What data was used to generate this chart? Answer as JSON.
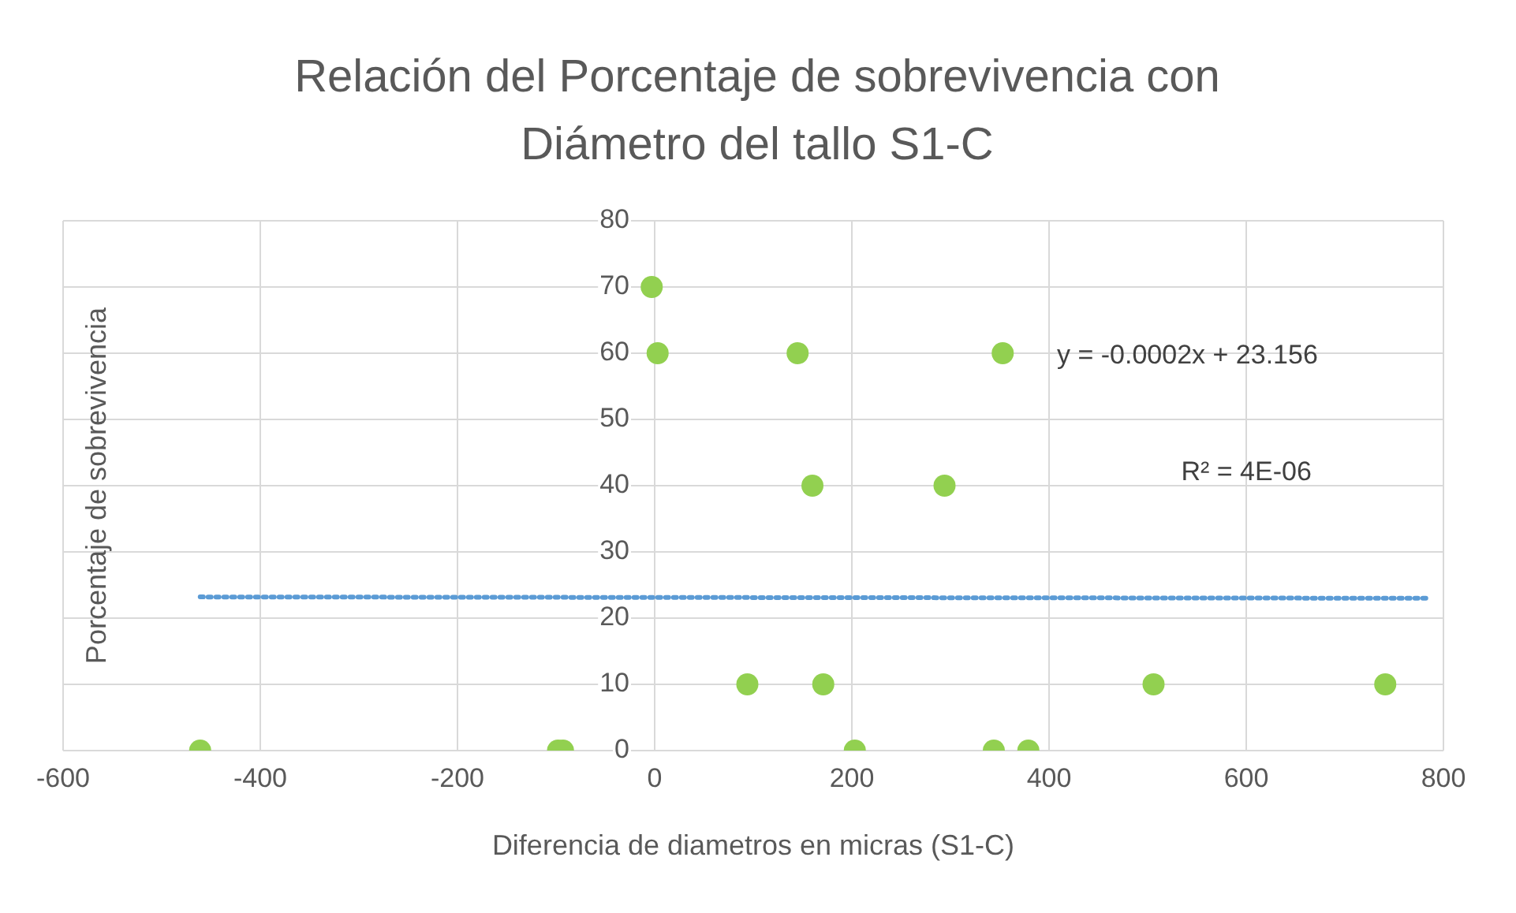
{
  "chart_data": {
    "type": "scatter",
    "title": "Relación del Porcentaje de sobrevivencia con Diámetro del tallo S1-C",
    "xlabel": "Diferencia de diametros en micras (S1-C)",
    "ylabel": "Porcentaje de sobrevivencia",
    "series": [
      {
        "color": "#92d050",
        "x": [
          -3,
          3,
          145,
          353,
          160,
          294,
          94,
          171,
          506,
          741,
          -461,
          -98,
          -93,
          203,
          344,
          379
        ],
        "values": [
          70,
          60,
          60,
          60,
          40,
          40,
          10,
          10,
          10,
          10,
          0,
          0,
          0,
          0,
          0,
          0
        ]
      },
      {
        "type": "line",
        "color": "#5b9bd5",
        "line_style": "dotted",
        "marker": "none",
        "x": [
          -461,
          785
        ],
        "values": [
          23.2,
          23.0
        ]
      }
    ],
    "annotations": [
      "y = -0.0002x + 23.156",
      "R² = 4E-06"
    ],
    "xlim": [
      -600,
      800
    ],
    "xticks": [
      -600,
      -400,
      -200,
      0,
      200,
      400,
      600,
      800
    ],
    "ylim": [
      0,
      80
    ],
    "yticks": [
      0,
      10,
      20,
      30,
      40,
      50,
      60,
      70,
      80
    ],
    "grid": true,
    "legend": false,
    "marker": "circle"
  }
}
